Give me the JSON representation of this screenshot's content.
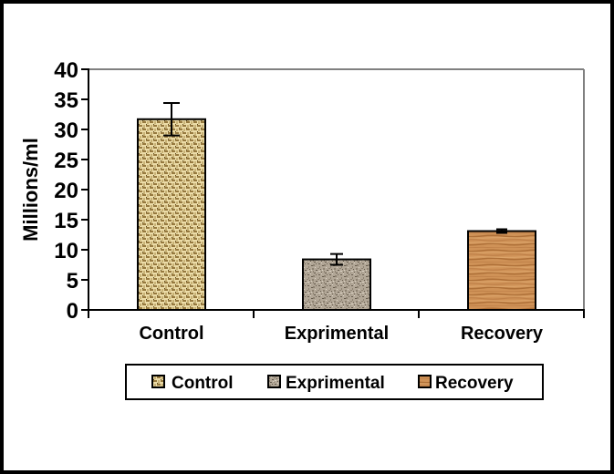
{
  "chart_data": {
    "type": "bar",
    "categories": [
      "Control",
      "Exprimental",
      "Recovery"
    ],
    "values": [
      31.7,
      8.4,
      13.1
    ],
    "errors": [
      2.7,
      0.9,
      0.3
    ],
    "title": "",
    "xlabel": "",
    "ylabel": "Millions/ml",
    "ylim": [
      0,
      40
    ],
    "ytick_step": 5,
    "yticks": [
      0,
      5,
      10,
      15,
      20,
      25,
      30,
      35,
      40
    ],
    "grid": false,
    "legend_position": "bottom",
    "legend_entries": [
      "Control",
      "Exprimental",
      "Recovery"
    ],
    "bar_patterns": [
      "woven-burlap-tan",
      "granite-speckle-gray",
      "wood-grain-orange"
    ]
  },
  "colors": {
    "axis": "#000000",
    "plot_border": "#808080",
    "text": "#000000",
    "background": "#ffffff",
    "frame": "#000000",
    "legend_border": "#000000"
  },
  "textures": {
    "control": {
      "name": "woven-burlap-tan",
      "base": "#ECDCA8",
      "thread_dark": "#96793F",
      "thread_mid": "#C7B175",
      "knot": "#5E4A1F"
    },
    "exprimental": {
      "name": "granite-speckle-gray",
      "base": "#B2A797",
      "speckle_dark": "#655B4D",
      "speckle_mid": "#8D8272",
      "speckle_light": "#DCD4C6"
    },
    "recovery": {
      "name": "wood-grain-orange",
      "base": "#CF9257",
      "grain_dark": "#AE7038",
      "grain_mid": "#C08149",
      "grain_light": "#E0AA70"
    }
  }
}
